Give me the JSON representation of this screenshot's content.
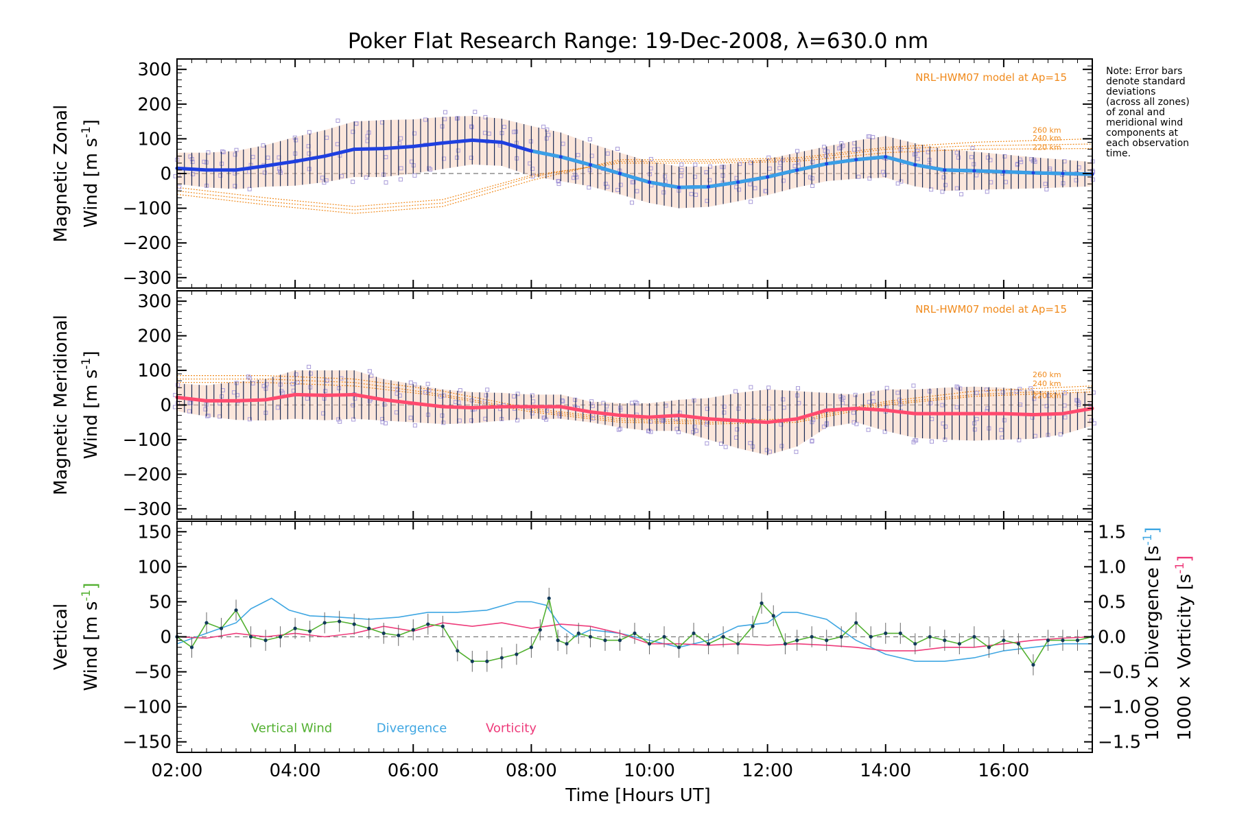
{
  "figure": {
    "title": "Poker Flat Research Range: 19-Dec-2008, λ=630.0 nm",
    "xlabel": "Time [Hours UT]",
    "xticks": [
      "02:00",
      "04:00",
      "06:00",
      "08:00",
      "10:00",
      "12:00",
      "14:00",
      "16:00"
    ],
    "note": [
      "Note: Error bars",
      "denote standard",
      "deviations",
      "(across all zones)",
      "of zonal and",
      "meridional wind",
      "components at",
      "each observation",
      "time."
    ],
    "colors": {
      "zonal": "#1e3fe0",
      "zonal_late": "#3a9fe6",
      "meridional": "#ff4a6e",
      "model": "#f08a1c",
      "scatter": "#a79ad8",
      "vertical": "#52b030",
      "divergence": "#3ea6e2",
      "vorticity": "#ee3a7a",
      "errorbar": "#1a2a55"
    }
  },
  "chart_data": [
    {
      "type": "line",
      "id": "zonal",
      "ylabel_line1": "Magnetic Zonal",
      "ylabel_line2": "Wind [m s",
      "ylabel_sup": "-1",
      "ylabel_close": "]",
      "ylim": [
        -330,
        330
      ],
      "xlim": [
        2.0,
        17.5
      ],
      "yticks": [
        "300",
        "200",
        "100",
        "0",
        "−100",
        "−200",
        "−300"
      ],
      "model_label": "NRL-HWM07 model at Ap=15",
      "model_altitudes": [
        "260 km",
        "240 km",
        "220 km"
      ],
      "series": [
        {
          "name": "Magnetic Zonal Wind",
          "x": [
            2.0,
            2.5,
            3.0,
            3.5,
            4.0,
            4.5,
            5.0,
            5.5,
            6.0,
            6.5,
            7.0,
            7.5,
            8.0,
            8.5,
            9.0,
            9.5,
            10.0,
            10.5,
            11.0,
            11.5,
            12.0,
            12.5,
            13.0,
            13.5,
            14.0,
            14.5,
            15.0,
            15.5,
            16.0,
            16.5,
            17.0,
            17.5
          ],
          "y": [
            15,
            10,
            10,
            22,
            35,
            50,
            70,
            72,
            78,
            88,
            96,
            90,
            65,
            48,
            25,
            0,
            -25,
            -40,
            -38,
            -25,
            -10,
            10,
            28,
            40,
            48,
            25,
            10,
            8,
            5,
            2,
            0,
            -2
          ],
          "err": [
            45,
            50,
            55,
            60,
            70,
            75,
            80,
            82,
            78,
            75,
            70,
            68,
            72,
            70,
            62,
            60,
            60,
            60,
            58,
            55,
            52,
            50,
            50,
            55,
            60,
            62,
            60,
            55,
            50,
            45,
            40,
            35
          ]
        }
      ],
      "model": [
        {
          "x": [
            2.0,
            3.5,
            5.0,
            6.5,
            8.0,
            9.5,
            11.0,
            12.5,
            14.0,
            15.5,
            17.5
          ],
          "y": [
            -60,
            -90,
            -115,
            -95,
            -20,
            40,
            40,
            45,
            75,
            90,
            100
          ]
        },
        {
          "x": [
            2.0,
            3.5,
            5.0,
            6.5,
            8.0,
            9.5,
            11.0,
            12.5,
            14.0,
            15.5,
            17.5
          ],
          "y": [
            -50,
            -80,
            -105,
            -85,
            -10,
            35,
            35,
            40,
            70,
            80,
            85
          ]
        },
        {
          "x": [
            2.0,
            3.5,
            5.0,
            6.5,
            8.0,
            9.5,
            11.0,
            12.5,
            14.0,
            15.5,
            17.5
          ],
          "y": [
            -40,
            -70,
            -95,
            -75,
            -5,
            30,
            30,
            35,
            60,
            70,
            72
          ]
        }
      ]
    },
    {
      "type": "line",
      "id": "meridional",
      "ylabel_line1": "Magnetic Meridional",
      "ylabel_line2": "Wind [m s",
      "ylabel_sup": "-1",
      "ylabel_close": "]",
      "ylim": [
        -330,
        330
      ],
      "xlim": [
        2.0,
        17.5
      ],
      "yticks": [
        "300",
        "200",
        "100",
        "0",
        "−100",
        "−200",
        "−300"
      ],
      "model_label": "NRL-HWM07 model at Ap=15",
      "model_altitudes": [
        "260 km",
        "240 km",
        "220 km"
      ],
      "series": [
        {
          "name": "Magnetic Meridional Wind",
          "x": [
            2.0,
            2.5,
            3.0,
            3.5,
            4.0,
            4.5,
            5.0,
            5.5,
            6.0,
            6.5,
            7.0,
            7.5,
            8.0,
            8.5,
            9.0,
            9.5,
            10.0,
            10.5,
            11.0,
            11.5,
            12.0,
            12.5,
            13.0,
            13.5,
            14.0,
            14.5,
            15.0,
            15.5,
            16.0,
            16.5,
            17.0,
            17.5
          ],
          "y": [
            22,
            12,
            12,
            15,
            30,
            28,
            30,
            15,
            5,
            -5,
            -8,
            -5,
            -5,
            -5,
            -20,
            -30,
            -35,
            -30,
            -40,
            -45,
            -50,
            -40,
            -15,
            -10,
            -15,
            -25,
            -25,
            -25,
            -25,
            -28,
            -25,
            -10
          ],
          "err": [
            40,
            45,
            55,
            60,
            70,
            72,
            70,
            60,
            55,
            50,
            45,
            40,
            35,
            35,
            30,
            35,
            40,
            45,
            60,
            80,
            95,
            80,
            50,
            40,
            60,
            70,
            75,
            78,
            75,
            70,
            60,
            50
          ]
        }
      ],
      "model": [
        {
          "x": [
            2.0,
            3.5,
            5.0,
            6.5,
            8.0,
            9.5,
            11.0,
            12.5,
            14.0,
            15.5,
            17.5
          ],
          "y": [
            85,
            85,
            75,
            40,
            -10,
            -40,
            -45,
            -40,
            10,
            40,
            55
          ]
        },
        {
          "x": [
            2.0,
            3.5,
            5.0,
            6.5,
            8.0,
            9.5,
            11.0,
            12.5,
            14.0,
            15.5,
            17.5
          ],
          "y": [
            75,
            75,
            65,
            30,
            -15,
            -45,
            -50,
            -45,
            5,
            30,
            45
          ]
        },
        {
          "x": [
            2.0,
            3.5,
            5.0,
            6.5,
            8.0,
            9.5,
            11.0,
            12.5,
            14.0,
            15.5,
            17.5
          ],
          "y": [
            65,
            65,
            55,
            25,
            -20,
            -50,
            -55,
            -50,
            0,
            25,
            38
          ]
        }
      ]
    },
    {
      "type": "line",
      "id": "vertical",
      "ylabel_line1": "Vertical",
      "ylabel_line2": "Wind [m s",
      "ylabel_sup": "-1",
      "ylabel_close": "]",
      "ylim": [
        -165,
        165
      ],
      "xlim": [
        2.0,
        17.5
      ],
      "yticks": [
        "150",
        "100",
        "50",
        "0",
        "−50",
        "−100",
        "−150"
      ],
      "y2lim": [
        -1.65,
        1.65
      ],
      "y2ticks": [
        "1.5",
        "1.0",
        "0.5",
        "0.0",
        "−0.5",
        "−1.0",
        "−1.5"
      ],
      "y2label_div": "1000 × Divergence [s",
      "y2label_vor": "1000 × Vorticity [s",
      "y2label_sup": "-1",
      "y2label_close": "]",
      "legend": [
        "Vertical Wind",
        "Divergence",
        "Vorticity"
      ],
      "series": [
        {
          "name": "Vertical Wind",
          "x": [
            2.0,
            2.25,
            2.5,
            2.75,
            3.0,
            3.25,
            3.5,
            3.75,
            4.0,
            4.25,
            4.5,
            4.75,
            5.0,
            5.25,
            5.5,
            5.75,
            6.0,
            6.25,
            6.5,
            6.75,
            7.0,
            7.25,
            7.5,
            7.75,
            8.0,
            8.15,
            8.3,
            8.45,
            8.6,
            8.8,
            9.0,
            9.25,
            9.5,
            9.75,
            10.0,
            10.25,
            10.5,
            10.75,
            11.0,
            11.25,
            11.5,
            11.75,
            11.9,
            12.1,
            12.3,
            12.5,
            12.75,
            13.0,
            13.25,
            13.5,
            13.75,
            14.0,
            14.25,
            14.5,
            14.75,
            15.0,
            15.25,
            15.5,
            15.75,
            16.0,
            16.25,
            16.5,
            16.75,
            17.0,
            17.25,
            17.5
          ],
          "y": [
            0,
            -15,
            20,
            12,
            38,
            0,
            -5,
            0,
            12,
            8,
            20,
            22,
            18,
            12,
            5,
            2,
            10,
            18,
            15,
            -20,
            -35,
            -35,
            -30,
            -25,
            -15,
            10,
            55,
            -5,
            -10,
            5,
            0,
            -5,
            -5,
            5,
            -10,
            0,
            -15,
            5,
            -10,
            0,
            -10,
            15,
            48,
            30,
            -10,
            -5,
            0,
            -5,
            0,
            20,
            0,
            5,
            5,
            -10,
            0,
            -5,
            -10,
            0,
            -15,
            -5,
            -10,
            -40,
            -5,
            -5,
            -5,
            0
          ],
          "err": 15
        },
        {
          "name": "Divergence",
          "x": [
            2.0,
            2.5,
            3.0,
            3.25,
            3.6,
            3.9,
            4.25,
            4.75,
            5.25,
            5.75,
            6.25,
            6.75,
            7.25,
            7.75,
            8.0,
            8.25,
            8.5,
            8.75,
            9.0,
            9.5,
            10.0,
            10.5,
            11.0,
            11.5,
            12.0,
            12.25,
            12.5,
            12.75,
            13.0,
            13.25,
            13.5,
            13.75,
            14.0,
            14.5,
            15.0,
            15.5,
            16.0,
            16.5,
            17.0,
            17.5
          ],
          "y": [
            -0.1,
            0.05,
            0.2,
            0.4,
            0.55,
            0.38,
            0.3,
            0.28,
            0.25,
            0.28,
            0.35,
            0.35,
            0.38,
            0.5,
            0.5,
            0.45,
            0.15,
            0.0,
            0.1,
            0.05,
            -0.05,
            -0.15,
            -0.05,
            0.15,
            0.2,
            0.35,
            0.35,
            0.3,
            0.25,
            0.1,
            -0.05,
            -0.15,
            -0.25,
            -0.35,
            -0.35,
            -0.3,
            -0.2,
            -0.15,
            -0.1,
            -0.1
          ],
          "y_units": "right axis"
        },
        {
          "name": "Vorticity",
          "x": [
            2.0,
            2.5,
            3.0,
            3.5,
            4.0,
            4.5,
            5.0,
            5.5,
            6.0,
            6.5,
            7.0,
            7.5,
            8.0,
            8.5,
            9.0,
            9.5,
            10.0,
            10.5,
            11.0,
            11.5,
            12.0,
            12.5,
            13.0,
            13.5,
            14.0,
            14.5,
            15.0,
            15.5,
            16.0,
            16.5,
            17.0,
            17.5
          ],
          "y": [
            0.0,
            -0.02,
            0.05,
            0.0,
            0.05,
            0.0,
            0.05,
            0.15,
            0.08,
            0.2,
            0.15,
            0.2,
            0.12,
            0.18,
            0.15,
            0.05,
            -0.1,
            -0.1,
            -0.12,
            -0.1,
            -0.12,
            -0.1,
            -0.12,
            -0.15,
            -0.2,
            -0.2,
            -0.15,
            -0.15,
            -0.1,
            -0.05,
            -0.02,
            0.0
          ],
          "y_units": "right axis"
        }
      ]
    }
  ]
}
